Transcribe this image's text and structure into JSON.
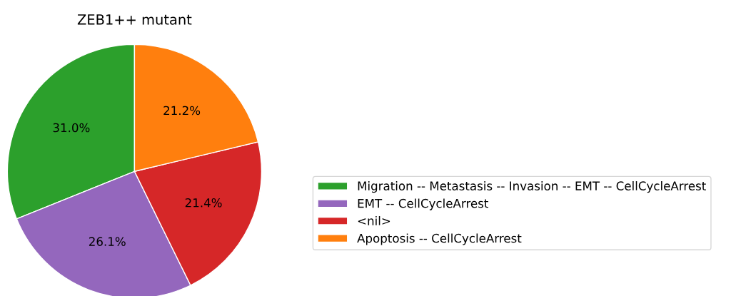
{
  "chart_data": {
    "type": "pie",
    "title": "ZEB1++ mutant",
    "categories": [
      "Migration -- Metastasis -- Invasion -- EMT -- CellCycleArrest",
      "EMT -- CellCycleArrest",
      "<nil>",
      "Apoptosis -- CellCycleArrest"
    ],
    "values": [
      31.0,
      26.1,
      21.4,
      21.2
    ],
    "colors": [
      "#2ca02c",
      "#9467bd",
      "#d62728",
      "#ff7f0e"
    ],
    "value_labels": [
      "31.0%",
      "26.1%",
      "21.4%",
      "21.2%"
    ],
    "legend": "right"
  }
}
